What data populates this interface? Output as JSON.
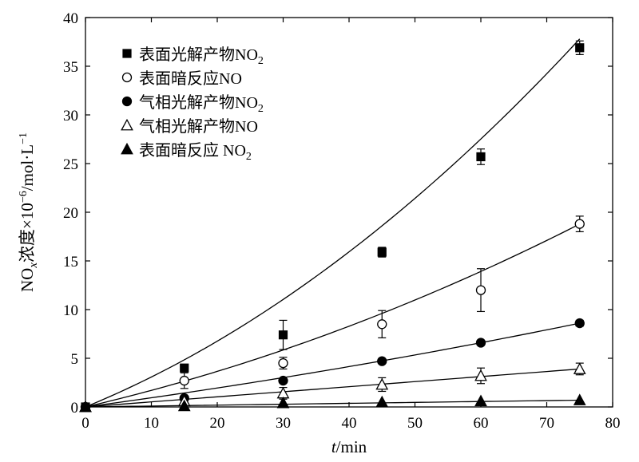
{
  "chart_data": {
    "type": "scatter",
    "xlabel": {
      "italic": "t",
      "rest": "/min"
    },
    "ylabel": {
      "prefix": "NO",
      "sub": "x",
      "middle": "浓度×10",
      "sup": "−6",
      "unit": "/mol·L",
      "unitSup": "−1"
    },
    "xlim": [
      0,
      80
    ],
    "ylim": [
      0,
      40
    ],
    "xticks": [
      0,
      10,
      20,
      30,
      40,
      50,
      60,
      70,
      80
    ],
    "yticks": [
      0,
      5,
      10,
      15,
      20,
      25,
      30,
      35,
      40
    ],
    "grid": false,
    "legend_position": "top-left",
    "series": [
      {
        "name": "表面光解产物NO2",
        "legend": {
          "text": "表面光解产物NO",
          "sub": "2"
        },
        "marker": "filled-square",
        "x": [
          0,
          15,
          30,
          45,
          60,
          75
        ],
        "y": [
          0,
          4.0,
          7.4,
          15.9,
          25.7,
          36.9
        ],
        "err": [
          0,
          0,
          1.5,
          0.5,
          0.8,
          0.7
        ],
        "fit": [
          0,
          0.2773,
          0.003024
        ]
      },
      {
        "name": "表面暗反应NO",
        "legend": {
          "text": "表面暗反应NO",
          "sub": ""
        },
        "marker": "open-circle",
        "x": [
          0,
          15,
          30,
          45,
          60,
          75
        ],
        "y": [
          0,
          2.7,
          4.5,
          8.5,
          12.0,
          18.8
        ],
        "err": [
          0,
          0.8,
          0.6,
          1.4,
          2.2,
          0.8
        ],
        "fit": [
          0,
          0.158,
          0.001233
        ]
      },
      {
        "name": "气相光解产物NO2",
        "legend": {
          "text": "气相光解产物NO",
          "sub": "2"
        },
        "marker": "filled-circle",
        "x": [
          0,
          15,
          30,
          45,
          60,
          75
        ],
        "y": [
          0,
          0.9,
          2.7,
          4.7,
          6.6,
          8.6
        ],
        "err": [
          0,
          0,
          0,
          0,
          0,
          0.3
        ],
        "fit": [
          0,
          0.091,
          0.000316
        ]
      },
      {
        "name": "气相光解产物NO",
        "legend": {
          "text": "气相光解产物NO",
          "sub": ""
        },
        "marker": "open-triangle",
        "x": [
          0,
          15,
          30,
          45,
          60,
          75
        ],
        "y": [
          0,
          0.6,
          1.4,
          2.3,
          3.2,
          3.9
        ],
        "err": [
          0,
          0.3,
          0.6,
          0.7,
          0.8,
          0.6
        ],
        "fit": [
          0,
          0.052,
          0
        ]
      },
      {
        "name": "表面暗反应NO2",
        "legend": {
          "text": "表面暗反应 NO",
          "sub": "2"
        },
        "marker": "filled-triangle",
        "x": [
          0,
          15,
          30,
          45,
          60,
          75
        ],
        "y": [
          0,
          0.1,
          0.4,
          0.5,
          0.6,
          0.7
        ],
        "err": [
          0,
          0,
          0,
          0,
          0,
          0
        ],
        "fit": [
          0,
          0.0093,
          0
        ]
      }
    ]
  }
}
